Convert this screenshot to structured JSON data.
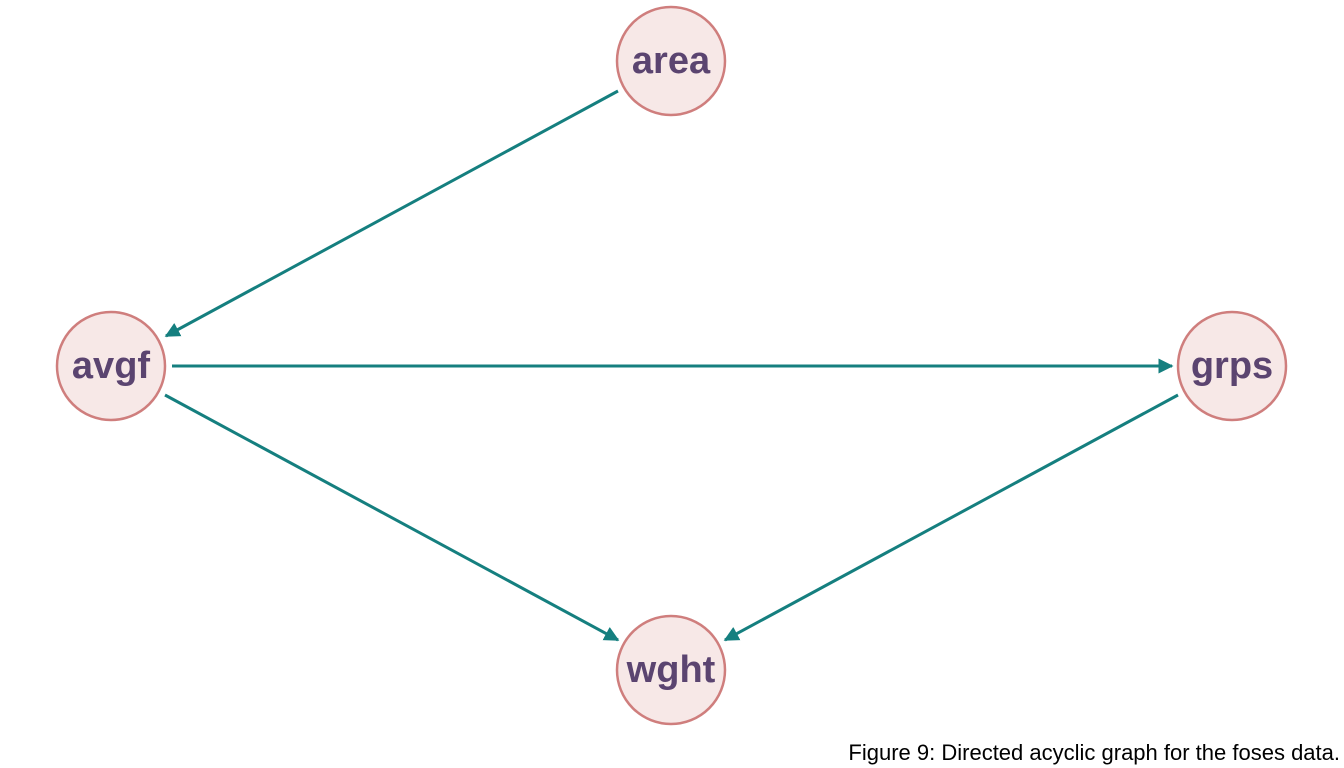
{
  "diagram": {
    "colors": {
      "node_fill": "#f7e8e7",
      "node_stroke": "#cf7e7d",
      "node_text": "#5b4470",
      "edge": "#157f7f"
    },
    "nodes": [
      {
        "id": "area",
        "label": "area"
      },
      {
        "id": "avgf",
        "label": "avgf"
      },
      {
        "id": "grps",
        "label": "grps"
      },
      {
        "id": "wght",
        "label": "wght"
      }
    ],
    "edges": [
      {
        "from": "area",
        "to": "avgf"
      },
      {
        "from": "avgf",
        "to": "grps"
      },
      {
        "from": "avgf",
        "to": "wght"
      },
      {
        "from": "grps",
        "to": "wght"
      }
    ]
  },
  "caption": "Figure 9: Directed acyclic graph for the foses data."
}
